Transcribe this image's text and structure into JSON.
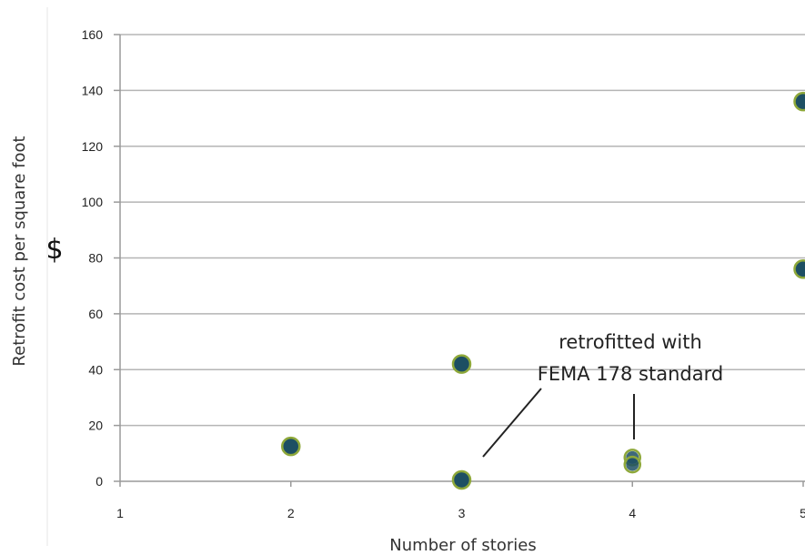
{
  "chart_data": {
    "type": "scatter",
    "title": "",
    "xlabel": "Number of stories",
    "ylabel": "Retrofit cost per square foot",
    "ylabel_symbol": "$",
    "xlim": [
      1,
      5
    ],
    "ylim": [
      0,
      160
    ],
    "xticks": [
      "1",
      "2",
      "3",
      "4",
      "5"
    ],
    "yticks": [
      "0",
      "20",
      "40",
      "60",
      "80",
      "100",
      "120",
      "140",
      "160"
    ],
    "grid": "horizontal",
    "legend": "none",
    "series": [
      {
        "points": [
          {
            "x": 2,
            "y": 12.5,
            "style": "filled"
          },
          {
            "x": 3,
            "y": 42,
            "style": "filled"
          },
          {
            "x": 3,
            "y": 0.5,
            "style": "filled"
          },
          {
            "x": 4,
            "y": 8.5,
            "style": "hollow"
          },
          {
            "x": 4,
            "y": 6,
            "style": "hollow"
          },
          {
            "x": 5,
            "y": 136,
            "style": "filled"
          },
          {
            "x": 5,
            "y": 76,
            "style": "filled"
          }
        ]
      }
    ],
    "annotations": [
      {
        "lines": [
          "retrofitted with",
          "FEMA 178 standard"
        ]
      }
    ],
    "colors": {
      "marker_fill": "#1d4f63",
      "marker_edge": "#8ea83a",
      "grid": "#b5b5b5",
      "axis": "#9a9a9a"
    }
  }
}
